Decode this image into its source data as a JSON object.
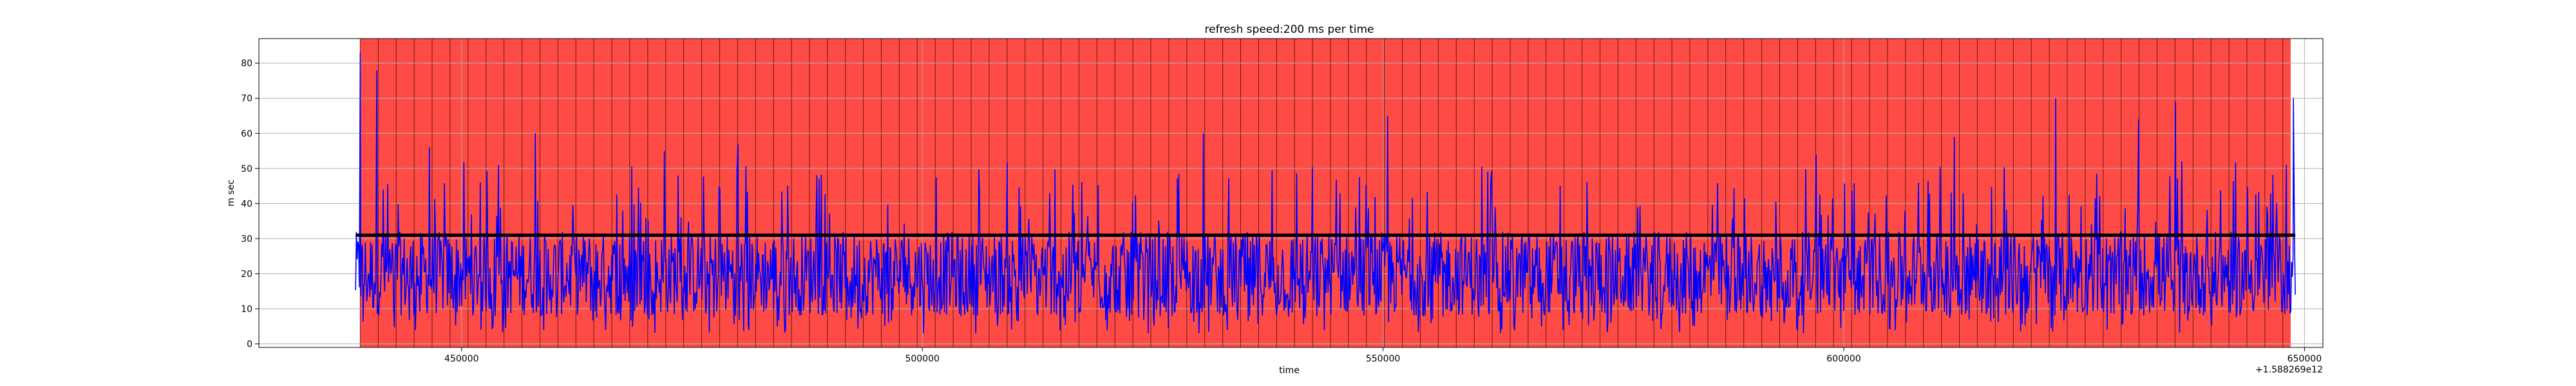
{
  "chart_data": {
    "type": "line",
    "title": "refresh speed:200 ms per time",
    "xlabel": "time",
    "ylabel": "m sec",
    "x_offset_label": "+1.588269e12",
    "xlim": [
      428000,
      652000
    ],
    "ylim": [
      -1,
      87
    ],
    "x_ticks": [
      450000,
      500000,
      550000,
      600000,
      650000
    ],
    "x_tick_labels": [
      "450000",
      "500000",
      "550000",
      "600000",
      "650000"
    ],
    "y_ticks": [
      0,
      10,
      20,
      30,
      40,
      50,
      60,
      70,
      80
    ],
    "y_tick_labels": [
      "0",
      "10",
      "20",
      "30",
      "40",
      "50",
      "60",
      "70",
      "80"
    ],
    "grid": true,
    "background_band": {
      "x_start": 439000,
      "x_end": 648500,
      "color": "#ff4b45",
      "divider_interval": 1950
    },
    "series": [
      {
        "style": "line",
        "color": "#0000ff",
        "x_start": 438500,
        "x_end": 649000,
        "samples": 2600,
        "typical_range": [
          8,
          32
        ],
        "mean": 20,
        "peaks": [
          {
            "x": 439000,
            "y": 83
          },
          {
            "x": 440800,
            "y": 78
          },
          {
            "x": 446500,
            "y": 56
          },
          {
            "x": 454000,
            "y": 51
          },
          {
            "x": 458000,
            "y": 60
          },
          {
            "x": 472000,
            "y": 55
          },
          {
            "x": 480000,
            "y": 57
          },
          {
            "x": 530500,
            "y": 60
          },
          {
            "x": 550500,
            "y": 65
          },
          {
            "x": 597000,
            "y": 54
          },
          {
            "x": 612000,
            "y": 59
          },
          {
            "x": 623000,
            "y": 70
          },
          {
            "x": 632000,
            "y": 64
          },
          {
            "x": 636000,
            "y": 69
          },
          {
            "x": 648800,
            "y": 70
          }
        ]
      },
      {
        "style": "line",
        "color": "#000000",
        "x_start": 438500,
        "x_end": 649000,
        "level": 31
      }
    ]
  }
}
